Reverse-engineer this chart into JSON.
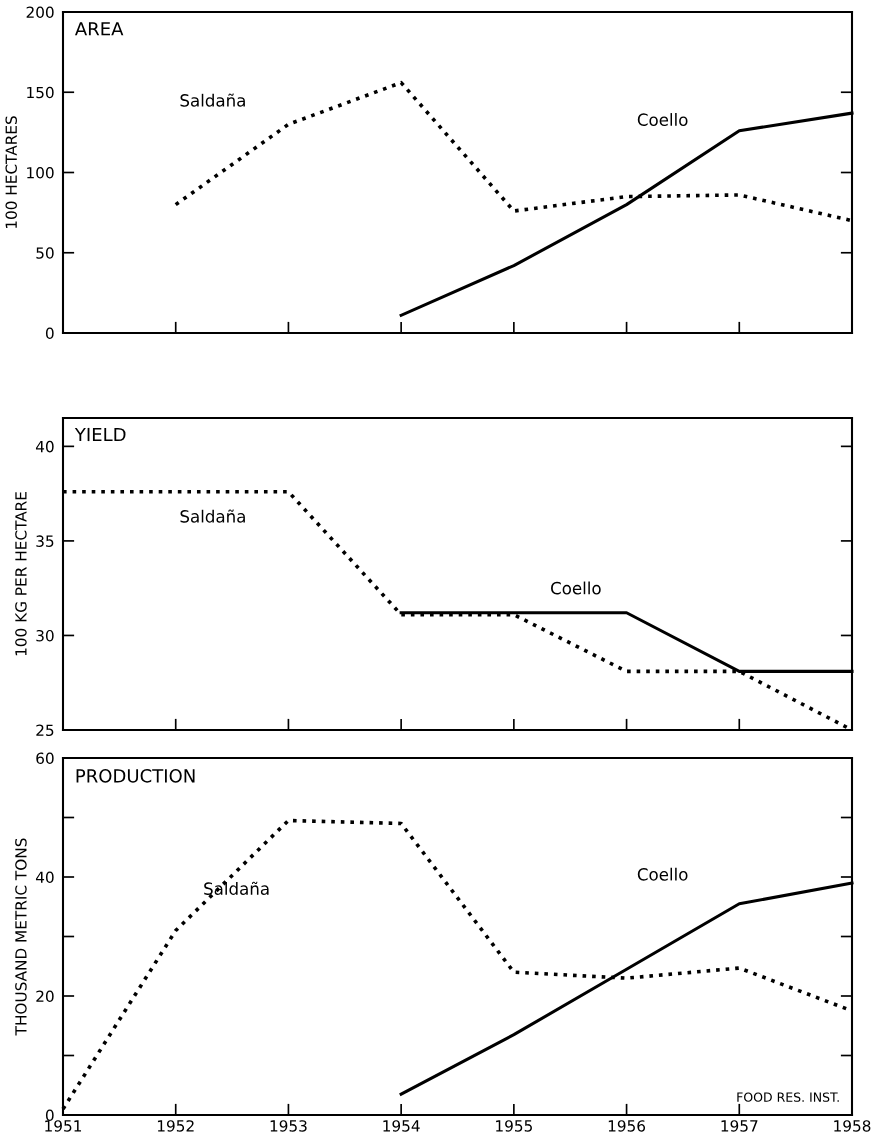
{
  "chart_data": [
    {
      "type": "line",
      "title": "AREA",
      "ylabel": "100 HECTARES",
      "x": [
        1952,
        1953,
        1954,
        1955,
        1956,
        1957,
        1958
      ],
      "xlim": [
        1951,
        1958
      ],
      "xticks": [
        1951,
        1952,
        1953,
        1954,
        1955,
        1956,
        1957,
        1958
      ],
      "ylim": [
        0,
        200
      ],
      "yticks": [
        0,
        50,
        100,
        150,
        200
      ],
      "tick_labels": "y",
      "grid": false,
      "legend": false,
      "series": [
        {
          "color": "#000000",
          "line_style": "dotted",
          "values": [
            80,
            130,
            156,
            76,
            85,
            86,
            70
          ]
        },
        {
          "color": "#000000",
          "line_style": "solid",
          "values": [
            null,
            null,
            11,
            42,
            80,
            126,
            137
          ]
        }
      ],
      "annotations": [
        "Saldaña",
        "Coello"
      ]
    },
    {
      "type": "line",
      "title": "YIELD",
      "ylabel": "100 KG PER HECTARE",
      "x": [
        1951,
        1952,
        1953,
        1954,
        1955,
        1956,
        1957,
        1958
      ],
      "xlim": [
        1951,
        1958
      ],
      "xticks": [
        1951,
        1952,
        1953,
        1954,
        1955,
        1956,
        1957,
        1958
      ],
      "ylim": [
        25,
        41.5
      ],
      "yticks": [
        25,
        30,
        35,
        40
      ],
      "tick_labels": "y",
      "grid": false,
      "legend": false,
      "series": [
        {
          "color": "#000000",
          "line_style": "dotted",
          "values": [
            37.6,
            37.6,
            37.6,
            31.1,
            31.1,
            28.1,
            28.1,
            25
          ]
        },
        {
          "color": "#000000",
          "line_style": "solid",
          "values": [
            null,
            null,
            null,
            31.2,
            31.2,
            31.2,
            28.1,
            28.1
          ]
        }
      ],
      "annotations": [
        "Saldaña",
        "Coello"
      ]
    },
    {
      "type": "line",
      "title": "PRODUCTION",
      "ylabel": "THOUSAND METRIC TONS",
      "x": [
        1951,
        1952,
        1953,
        1954,
        1955,
        1956,
        1957,
        1958
      ],
      "xlim": [
        1951,
        1958
      ],
      "xticks": [
        1951,
        1952,
        1953,
        1954,
        1955,
        1956,
        1957,
        1958
      ],
      "ylim": [
        0,
        60
      ],
      "yticks": [
        0,
        {
          "value": 10,
          "label": null
        },
        20,
        {
          "value": 30,
          "label": null
        },
        40,
        {
          "value": 50,
          "label": null
        },
        60
      ],
      "grid": false,
      "legend": false,
      "series": [
        {
          "color": "#000000",
          "line_style": "dotted",
          "values": [
            1,
            31,
            49.5,
            49,
            24,
            23,
            24.7,
            17.5
          ]
        },
        {
          "color": "#000000",
          "line_style": "solid",
          "values": [
            null,
            null,
            null,
            3.5,
            13.5,
            24.5,
            35.5,
            39
          ]
        }
      ],
      "annotations": [
        "Saldaña",
        "Coello",
        "FOOD RES. INST."
      ]
    }
  ]
}
